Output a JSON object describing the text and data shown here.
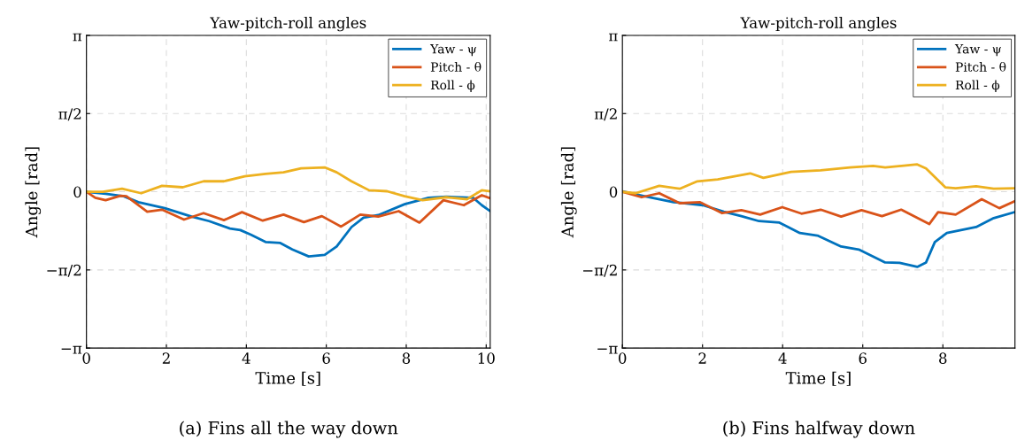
{
  "chart_data": [
    {
      "type": "line",
      "title": "Yaw-pitch-roll angles",
      "xlabel": "Time [s]",
      "ylabel": "Angle [rad]",
      "xlim": [
        0,
        10.1
      ],
      "xticks": [
        0,
        2,
        4,
        6,
        8,
        10
      ],
      "ylim": [
        -3.1416,
        3.1416
      ],
      "yticks": [
        {
          "value": -3.1416,
          "label": "−π"
        },
        {
          "value": -1.5708,
          "label": "−π/2"
        },
        {
          "value": 0,
          "label": "0"
        },
        {
          "value": 1.5708,
          "label": "π/2"
        },
        {
          "value": 3.1416,
          "label": "π"
        }
      ],
      "grid": true,
      "legend": "top right",
      "line_style": "solid",
      "annotations": [
        "(a) Fins all the way down"
      ],
      "series": [
        {
          "name": "Yaw - ψ",
          "color": "#0072bd",
          "x": [
            0,
            0.48,
            0.93,
            1.3,
            1.96,
            2.63,
            3.07,
            3.59,
            3.85,
            4.11,
            4.48,
            4.85,
            5.15,
            5.56,
            5.96,
            6.26,
            6.63,
            6.93,
            7.3,
            7.96,
            8.56,
            9.0,
            9.67,
            9.89,
            10.1
          ],
          "values": [
            0,
            -0.04,
            -0.09,
            -0.21,
            -0.33,
            -0.5,
            -0.59,
            -0.74,
            -0.77,
            -0.86,
            -1.01,
            -1.03,
            -1.16,
            -1.3,
            -1.27,
            -1.1,
            -0.71,
            -0.52,
            -0.47,
            -0.25,
            -0.12,
            -0.1,
            -0.12,
            -0.27,
            -0.39
          ]
        },
        {
          "name": "Pitch - θ",
          "color": "#d95319",
          "x": [
            0,
            0.22,
            0.48,
            0.85,
            1.0,
            1.52,
            1.89,
            2.44,
            2.93,
            3.44,
            3.89,
            4.41,
            4.93,
            5.44,
            5.89,
            6.37,
            6.85,
            7.3,
            7.81,
            8.33,
            8.93,
            9.44,
            9.89,
            10.1
          ],
          "values": [
            0,
            -0.12,
            -0.17,
            -0.08,
            -0.09,
            -0.4,
            -0.36,
            -0.56,
            -0.43,
            -0.57,
            -0.41,
            -0.58,
            -0.46,
            -0.61,
            -0.49,
            -0.7,
            -0.46,
            -0.5,
            -0.39,
            -0.62,
            -0.17,
            -0.27,
            -0.07,
            -0.13
          ]
        },
        {
          "name": "Roll - ϕ",
          "color": "#edb120",
          "x": [
            0,
            0.41,
            0.89,
            1.37,
            1.89,
            2.41,
            2.93,
            3.44,
            3.96,
            4.48,
            4.93,
            5.37,
            5.96,
            6.26,
            6.63,
            7.07,
            7.52,
            7.96,
            8.41,
            9.0,
            9.52,
            9.89,
            10.1
          ],
          "values": [
            0,
            0,
            0.06,
            -0.03,
            0.12,
            0.09,
            0.21,
            0.21,
            0.31,
            0.36,
            0.39,
            0.47,
            0.49,
            0.39,
            0.21,
            0.03,
            0.01,
            -0.09,
            -0.17,
            -0.11,
            -0.15,
            0.03,
            0.01
          ]
        }
      ]
    },
    {
      "type": "line",
      "title": "Yaw-pitch-roll angles",
      "xlabel": "Time [s]",
      "ylabel": "Angle [rad]",
      "xlim": [
        0,
        9.8
      ],
      "xticks": [
        0,
        2,
        4,
        6,
        8
      ],
      "ylim": [
        -3.1416,
        3.1416
      ],
      "yticks": [
        {
          "value": -3.1416,
          "label": "−π"
        },
        {
          "value": -1.5708,
          "label": "−π/2"
        },
        {
          "value": 0,
          "label": "0"
        },
        {
          "value": 1.5708,
          "label": "π/2"
        },
        {
          "value": 3.1416,
          "label": "π"
        }
      ],
      "grid": true,
      "legend": "top right",
      "line_style": "solid",
      "annotations": [
        "(b) Fins halfway down"
      ],
      "series": [
        {
          "name": "Yaw - ψ",
          "color": "#0072bd",
          "x": [
            0,
            0.55,
            1.28,
            2.01,
            2.53,
            2.97,
            3.41,
            3.92,
            4.43,
            4.87,
            5.46,
            5.9,
            6.56,
            6.92,
            7.36,
            7.58,
            7.8,
            8.1,
            8.83,
            9.27,
            9.79
          ],
          "values": [
            0.01,
            -0.09,
            -0.21,
            -0.27,
            -0.4,
            -0.49,
            -0.59,
            -0.62,
            -0.83,
            -0.88,
            -1.1,
            -1.16,
            -1.42,
            -1.43,
            -1.51,
            -1.42,
            -1.01,
            -0.83,
            -0.71,
            -0.53,
            -0.41
          ]
        },
        {
          "name": "Pitch - θ",
          "color": "#d95319",
          "x": [
            0,
            0.48,
            0.92,
            1.43,
            1.94,
            2.49,
            2.97,
            3.44,
            3.99,
            4.47,
            4.95,
            5.46,
            5.97,
            6.48,
            6.96,
            7.66,
            7.88,
            8.32,
            8.97,
            9.41,
            9.79
          ],
          "values": [
            0,
            -0.11,
            -0.03,
            -0.23,
            -0.21,
            -0.43,
            -0.37,
            -0.46,
            -0.31,
            -0.44,
            -0.36,
            -0.5,
            -0.37,
            -0.49,
            -0.36,
            -0.65,
            -0.41,
            -0.46,
            -0.15,
            -0.33,
            -0.19
          ]
        },
        {
          "name": "Roll - ϕ",
          "color": "#edb120",
          "x": [
            0,
            0.33,
            0.92,
            1.43,
            1.87,
            2.38,
            3.19,
            3.52,
            4.21,
            4.95,
            5.68,
            6.26,
            6.56,
            7.36,
            7.58,
            8.06,
            8.32,
            8.83,
            9.27,
            9.79
          ],
          "values": [
            0,
            -0.03,
            0.12,
            0.06,
            0.21,
            0.25,
            0.37,
            0.28,
            0.4,
            0.43,
            0.49,
            0.52,
            0.49,
            0.55,
            0.47,
            0.09,
            0.07,
            0.11,
            0.06,
            0.07
          ]
        }
      ]
    }
  ]
}
